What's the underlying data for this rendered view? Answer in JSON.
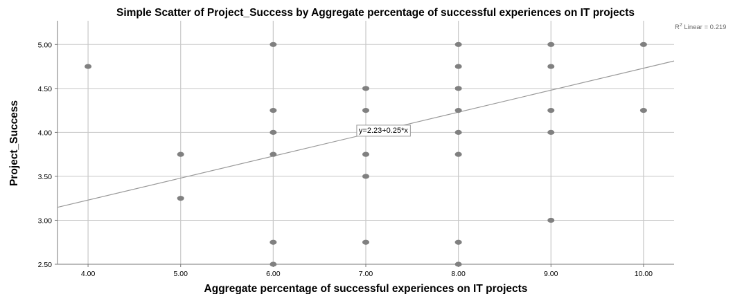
{
  "chart_data": {
    "type": "scatter",
    "title": "Simple Scatter of Project_Success by Aggregate percentage of successful experiences on IT projects",
    "xlabel": "Aggregate percentage of successful experiences on IT projects",
    "ylabel": "Project_Success",
    "xlim": [
      3.67,
      10.33
    ],
    "ylim": [
      2.5,
      5.27
    ],
    "x_ticks": [
      "4.00",
      "5.00",
      "6.00",
      "7.00",
      "8.00",
      "9.00",
      "10.00"
    ],
    "y_ticks": [
      "2.50",
      "3.00",
      "3.50",
      "4.00",
      "4.50",
      "5.00"
    ],
    "grid": true,
    "colors": {
      "points": "#808080",
      "grid": "#c8c8c8",
      "fit_line": "#999999",
      "axis": "#777777"
    },
    "points": [
      [
        4,
        4.75
      ],
      [
        5,
        3.75
      ],
      [
        5,
        3.25
      ],
      [
        6,
        5.0
      ],
      [
        6,
        4.25
      ],
      [
        6,
        4.0
      ],
      [
        6,
        3.75
      ],
      [
        6,
        2.75
      ],
      [
        6,
        2.5
      ],
      [
        7,
        4.5
      ],
      [
        7,
        4.25
      ],
      [
        7,
        3.75
      ],
      [
        7,
        3.5
      ],
      [
        7,
        2.75
      ],
      [
        8,
        5.0
      ],
      [
        8,
        4.75
      ],
      [
        8,
        4.5
      ],
      [
        8,
        4.25
      ],
      [
        8,
        4.0
      ],
      [
        8,
        3.75
      ],
      [
        8,
        2.75
      ],
      [
        8,
        2.5
      ],
      [
        9,
        5.0
      ],
      [
        9,
        4.75
      ],
      [
        9,
        4.25
      ],
      [
        9,
        4.0
      ],
      [
        9,
        3.0
      ],
      [
        10,
        5.0
      ],
      [
        10,
        4.25
      ]
    ],
    "fit_line": {
      "intercept": 2.23,
      "slope": 0.25
    },
    "fit_label": "y=2.23+0.25*x",
    "r2_label": {
      "prefix": "R",
      "sup": "2",
      "suffix": " Linear = 0.219"
    }
  }
}
